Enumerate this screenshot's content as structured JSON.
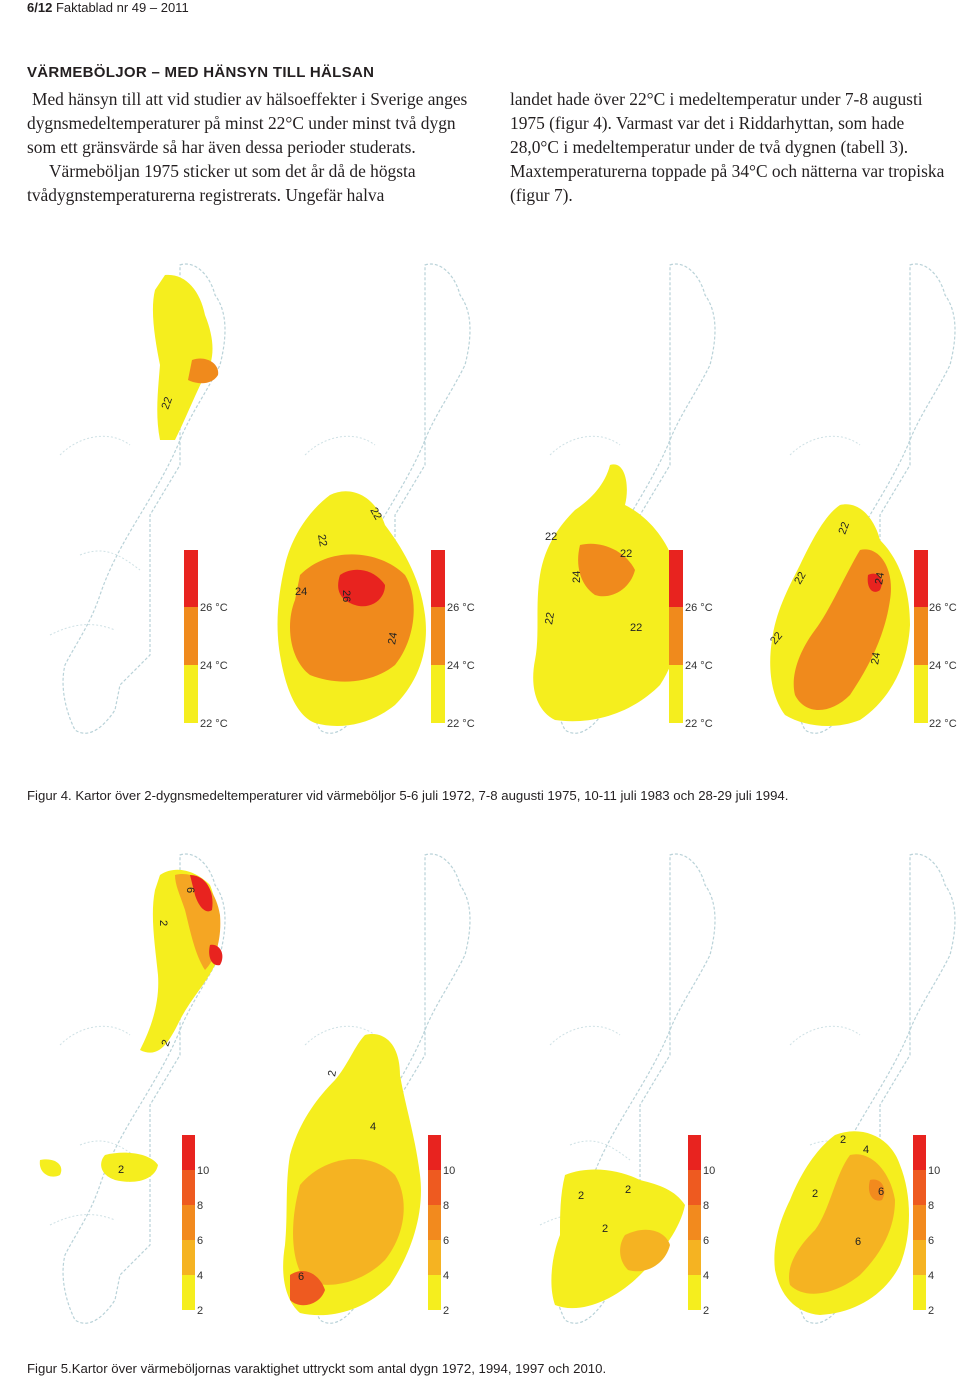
{
  "header": {
    "page": "6/12",
    "publication": "Faktablad nr 49 – 2011"
  },
  "article": {
    "heading": "VÄRMEBÖLJOR – MED HÄNSYN TILL HÄLSAN",
    "left_p1": "Med hänsyn till att vid studier av hälsoeffekter i Sverige anges dygnsmedeltemperaturer på minst 22°C under minst två dygn som ett gränsvärde så har även dessa perioder studerats.",
    "left_p2": "Värmeböljan 1975 sticker ut som det år då de högsta tvådygnstemperaturerna registrerats. Ungefär halva",
    "right_p1": "landet hade över 22°C i medeltemperatur under 7-8 augusti 1975 (figur 4). Varmast var det i Riddarhyttan, som hade 28,0°C i medeltemperatur under de två dygnen (tabell 3). Maxtemperaturerna toppade på 34°C och nätterna var tropiska (figur 7)."
  },
  "figure4": {
    "caption": "Figur 4. Kartor över 2-dygnsmedeltemperaturer vid värmeböljor  5-6 juli 1972, 7-8 augusti 1975, 10-11 juli 1983 och 28-29 juli 1994.",
    "legend": [
      "26 °C",
      "24 °C",
      "22 °C"
    ],
    "contour_label": "22",
    "contour_label_2": "24",
    "contour_label_3": "26",
    "colors": {
      "low": "#f5ee1e",
      "mid": "#f08a1c",
      "high": "#e8231f"
    }
  },
  "figure5": {
    "caption": "Figur 5.Kartor över värmeböljornas varaktighet uttryckt som antal dygn 1972, 1994, 1997 och 2010.",
    "legend": [
      "10",
      "8",
      "6",
      "4",
      "2"
    ],
    "contour_label": "2",
    "contour_label_2": "4",
    "contour_label_3": "6",
    "contour_label_4": "8",
    "colors": {
      "low": "#f5ee1e",
      "mid": "#f5a623",
      "high": "#e8231f"
    }
  }
}
